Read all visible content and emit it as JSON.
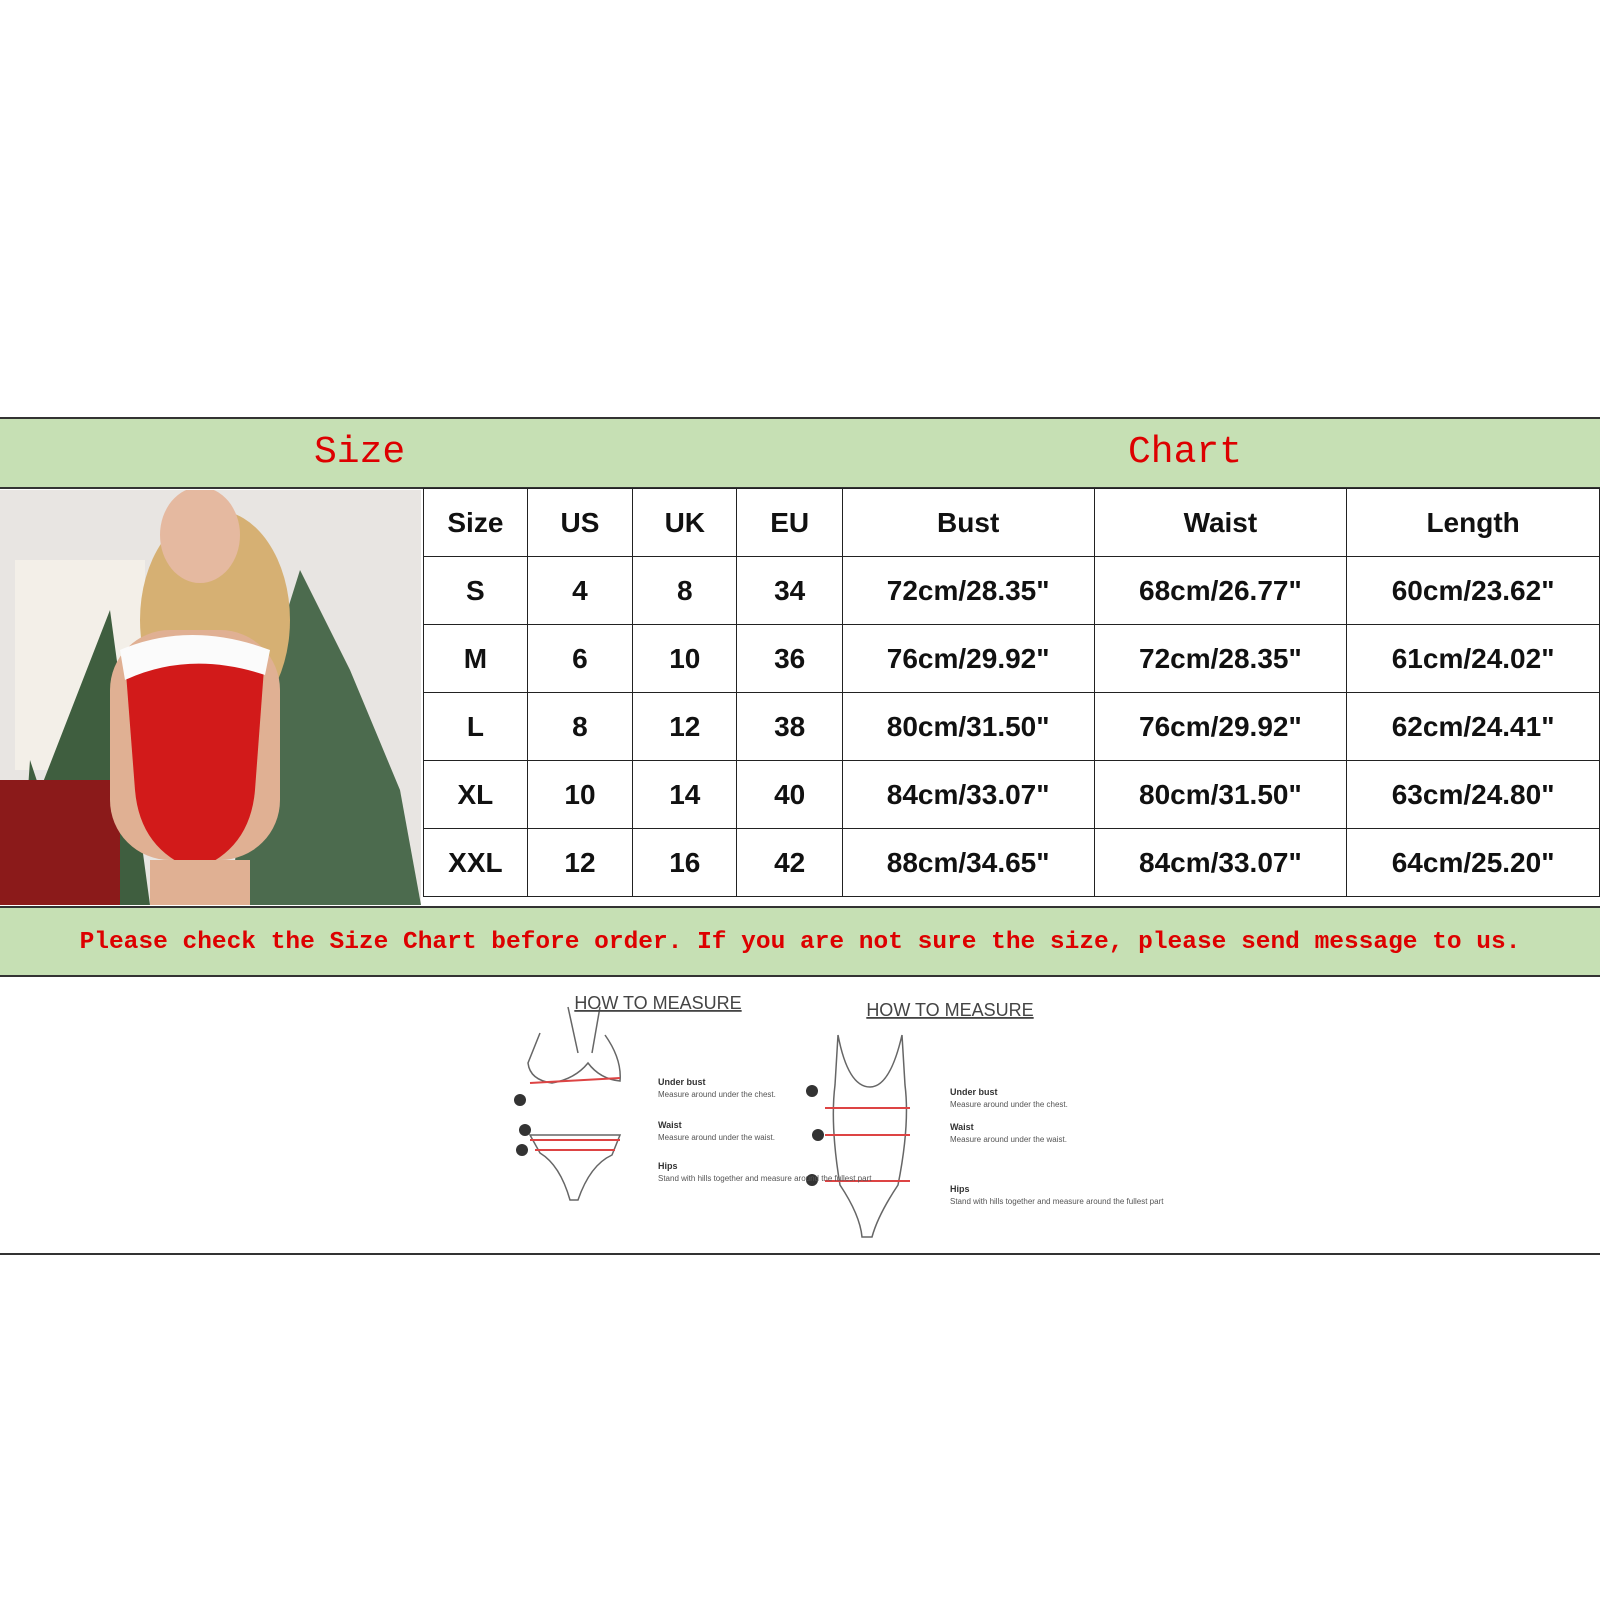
{
  "header": {
    "left": "Size",
    "right": "Chart"
  },
  "table": {
    "columns": [
      "Size",
      "US",
      "UK",
      "EU",
      "Bust",
      "Waist",
      "Length"
    ],
    "rows": [
      [
        "S",
        "4",
        "8",
        "34",
        "72cm/28.35\"",
        "68cm/26.77\"",
        "60cm/23.62\""
      ],
      [
        "M",
        "6",
        "10",
        "36",
        "76cm/29.92\"",
        "72cm/28.35\"",
        "61cm/24.02\""
      ],
      [
        "L",
        "8",
        "12",
        "38",
        "80cm/31.50\"",
        "76cm/29.92\"",
        "62cm/24.41\""
      ],
      [
        "XL",
        "10",
        "14",
        "40",
        "84cm/33.07\"",
        "80cm/31.50\"",
        "63cm/24.80\""
      ],
      [
        "XXL",
        "12",
        "16",
        "42",
        "88cm/34.65\"",
        "84cm/33.07\"",
        "64cm/25.20\""
      ]
    ]
  },
  "notice": "Please check the Size Chart before order. If you are not sure the size, please send message to us.",
  "diagrams": [
    {
      "title": "HOW TO MEASURE",
      "labels": [
        {
          "title": "Under bust",
          "text": "Measure around under the chest."
        },
        {
          "title": "Waist",
          "text": "Measure around under the waist."
        },
        {
          "title": "Hips",
          "text": "Stand with hills together and measure around the fullest part"
        }
      ]
    },
    {
      "title": "HOW TO MEASURE",
      "labels": [
        {
          "title": "Under bust",
          "text": "Measure around under the chest."
        },
        {
          "title": "Waist",
          "text": "Measure around under the waist."
        },
        {
          "title": "Hips",
          "text": "Stand with hills together and measure around the fullest part"
        }
      ]
    }
  ]
}
